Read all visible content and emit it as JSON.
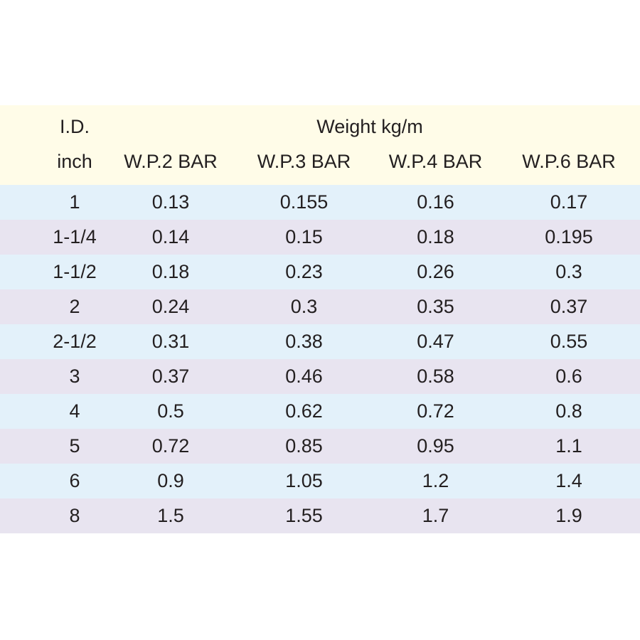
{
  "header": {
    "id_label": "I.D.",
    "unit_label": "inch",
    "group_label": "Weight  kg/m",
    "columns": [
      "W.P.2 BAR",
      "W.P.3 BAR",
      "W.P.4 BAR",
      "W.P.6 BAR"
    ]
  },
  "colors": {
    "header_bg": "#fffce8",
    "row_light": "#e3f1fa",
    "row_lilac": "#e8e4f0",
    "text": "#231f20"
  },
  "rows": [
    {
      "id": "1",
      "values": [
        "0.13",
        "0.155",
        "0.16",
        "0.17"
      ]
    },
    {
      "id": "1-1/4",
      "values": [
        "0.14",
        "0.15",
        "0.18",
        "0.195"
      ]
    },
    {
      "id": "1-1/2",
      "values": [
        "0.18",
        "0.23",
        "0.26",
        "0.3"
      ]
    },
    {
      "id": "2",
      "values": [
        "0.24",
        "0.3",
        "0.35",
        "0.37"
      ]
    },
    {
      "id": "2-1/2",
      "values": [
        "0.31",
        "0.38",
        "0.47",
        "0.55"
      ]
    },
    {
      "id": "3",
      "values": [
        "0.37",
        "0.46",
        "0.58",
        "0.6"
      ]
    },
    {
      "id": "4",
      "values": [
        "0.5",
        "0.62",
        "0.72",
        "0.8"
      ]
    },
    {
      "id": "5",
      "values": [
        "0.72",
        "0.85",
        "0.95",
        "1.1"
      ]
    },
    {
      "id": "6",
      "values": [
        "0.9",
        "1.05",
        "1.2",
        "1.4"
      ]
    },
    {
      "id": "8",
      "values": [
        "1.5",
        "1.55",
        "1.7",
        "1.9"
      ]
    }
  ]
}
